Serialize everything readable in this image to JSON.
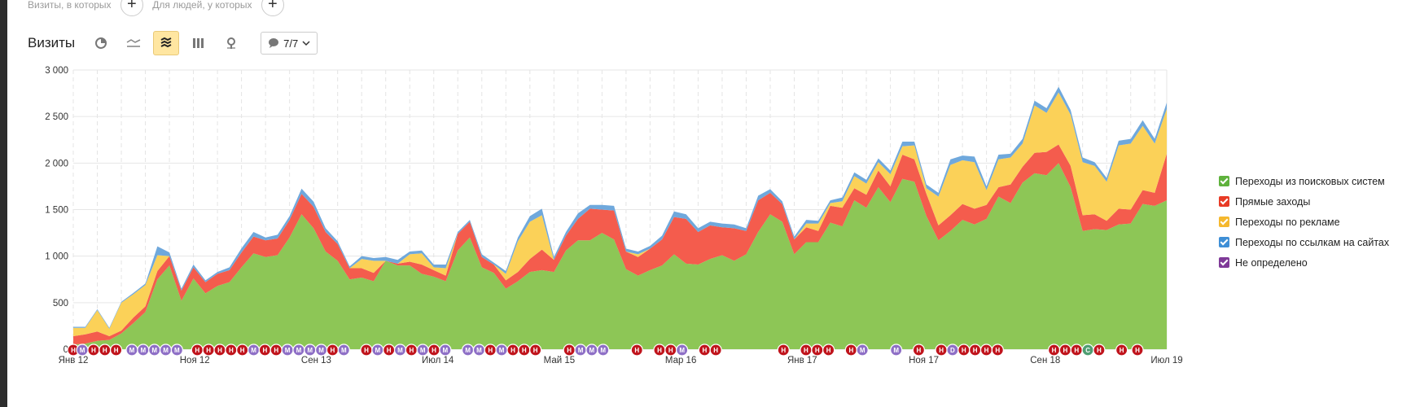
{
  "filters": {
    "visits_label": "Визиты, в которых",
    "people_label": "Для людей, у которых",
    "add_symbol": "+"
  },
  "toolbar": {
    "title": "Визиты",
    "annotations_count": "7/7"
  },
  "chart_data": {
    "type": "area",
    "stacked": true,
    "ylim": [
      0,
      3000
    ],
    "yticks": [
      0,
      500,
      1000,
      1500,
      2000,
      2500,
      3000
    ],
    "ytick_labels": [
      "0",
      "500",
      "1 000",
      "1 500",
      "2 000",
      "2 500",
      "3 000"
    ],
    "xtick_labels": [
      "Янв 12",
      "Ноя 12",
      "Сен 13",
      "Июл 14",
      "Май 15",
      "Мар 16",
      "Янв 17",
      "Ноя 17",
      "Сен 18",
      "Июл 19"
    ],
    "grid": true,
    "legend_position": "right",
    "series": [
      {
        "name": "Переходы из поисковых систем",
        "color": "#8dc656",
        "values": [
          50,
          60,
          90,
          100,
          170,
          280,
          400,
          750,
          900,
          520,
          760,
          600,
          680,
          720,
          880,
          1030,
          990,
          1010,
          1200,
          1450,
          1300,
          1050,
          950,
          750,
          770,
          730,
          950,
          900,
          900,
          810,
          780,
          730,
          1060,
          1200,
          880,
          820,
          650,
          730,
          830,
          850,
          830,
          1060,
          1170,
          1170,
          1250,
          1180,
          860,
          790,
          850,
          900,
          1020,
          920,
          910,
          970,
          1010,
          950,
          1020,
          1260,
          1450,
          1370,
          1020,
          1150,
          1150,
          1360,
          1320,
          1600,
          1520,
          1740,
          1580,
          1830,
          1800,
          1430,
          1170,
          1270,
          1390,
          1340,
          1400,
          1640,
          1570,
          1790,
          1890,
          1870,
          2000,
          1740,
          1270,
          1290,
          1280,
          1340,
          1350,
          1560,
          1540,
          1600
        ]
      },
      {
        "name": "Прямые заходы",
        "color": "#f45c4d",
        "values": [
          90,
          100,
          100,
          40,
          30,
          60,
          60,
          90,
          100,
          110,
          120,
          120,
          130,
          130,
          160,
          180,
          180,
          180,
          190,
          220,
          230,
          210,
          180,
          120,
          100,
          90,
          0,
          20,
          40,
          100,
          70,
          60,
          180,
          170,
          110,
          90,
          90,
          100,
          140,
          220,
          130,
          160,
          230,
          340,
          250,
          310,
          190,
          200,
          230,
          280,
          400,
          480,
          350,
          360,
          300,
          350,
          250,
          340,
          230,
          190,
          160,
          160,
          120,
          180,
          200,
          130,
          140,
          180,
          170,
          260,
          240,
          240,
          160,
          170,
          170,
          170,
          150,
          100,
          200,
          170,
          220,
          250,
          200,
          230,
          170,
          160,
          100,
          170,
          150,
          150,
          140,
          500
        ]
      },
      {
        "name": "Переходы по рекламе",
        "color": "#fbd158",
        "values": [
          90,
          70,
          230,
          80,
          300,
          250,
          230,
          170,
          0,
          0,
          0,
          0,
          0,
          0,
          0,
          0,
          0,
          0,
          0,
          0,
          0,
          0,
          0,
          0,
          100,
          130,
          0,
          0,
          80,
          120,
          30,
          80,
          0,
          0,
          0,
          0,
          70,
          330,
          400,
          370,
          0,
          0,
          0,
          0,
          0,
          0,
          0,
          30,
          0,
          0,
          0,
          0,
          0,
          0,
          0,
          0,
          0,
          0,
          0,
          0,
          0,
          40,
          80,
          30,
          70,
          130,
          120,
          90,
          130,
          90,
          150,
          60,
          310,
          540,
          470,
          500,
          160,
          300,
          290,
          250,
          510,
          420,
          560,
          550,
          570,
          520,
          420,
          680,
          710,
          690,
          530,
          480
        ]
      },
      {
        "name": "Переходы по ссылкам на сайтах",
        "color": "#6fa8dc",
        "values": [
          10,
          10,
          10,
          10,
          10,
          15,
          15,
          95,
          40,
          20,
          30,
          20,
          20,
          30,
          45,
          50,
          30,
          40,
          40,
          55,
          55,
          40,
          30,
          20,
          30,
          30,
          40,
          40,
          30,
          30,
          30,
          40,
          20,
          20,
          30,
          20,
          30,
          40,
          60,
          70,
          30,
          40,
          60,
          40,
          50,
          50,
          30,
          30,
          30,
          40,
          60,
          50,
          40,
          40,
          40,
          40,
          30,
          50,
          40,
          30,
          30,
          40,
          30,
          30,
          40,
          40,
          40,
          40,
          40,
          50,
          40,
          40,
          40,
          60,
          50,
          60,
          40,
          50,
          40,
          50,
          50,
          50,
          60,
          50,
          50,
          40,
          40,
          50,
          50,
          60,
          50,
          70
        ]
      },
      {
        "name": "Не определено",
        "color": "#7f3a98",
        "values": [
          0,
          0,
          0,
          0,
          0,
          0,
          0,
          0,
          0,
          0,
          0,
          0,
          0,
          0,
          0,
          0,
          0,
          0,
          0,
          0,
          0,
          0,
          0,
          0,
          0,
          0,
          0,
          0,
          0,
          0,
          0,
          0,
          0,
          0,
          0,
          0,
          0,
          0,
          0,
          0,
          0,
          0,
          0,
          0,
          0,
          0,
          0,
          0,
          0,
          0,
          0,
          0,
          0,
          0,
          0,
          0,
          0,
          0,
          0,
          0,
          0,
          0,
          0,
          0,
          0,
          0,
          0,
          0,
          0,
          0,
          0,
          0,
          0,
          0,
          0,
          0,
          0,
          0,
          0,
          0,
          0,
          0,
          0,
          0,
          0,
          0,
          0,
          0,
          0,
          0,
          0,
          0
        ]
      }
    ],
    "annotation_markers": [
      {
        "pos": 0.0,
        "t": "Н",
        "c": "#c0141c"
      },
      {
        "pos": 0.4,
        "t": "М",
        "c": "#8e6fc6"
      },
      {
        "pos": 0.9,
        "t": "Н",
        "c": "#c0141c"
      },
      {
        "pos": 1.4,
        "t": "Н",
        "c": "#c0141c"
      },
      {
        "pos": 1.9,
        "t": "Н",
        "c": "#c0141c"
      },
      {
        "pos": 2.6,
        "t": "М",
        "c": "#8e6fc6"
      },
      {
        "pos": 3.1,
        "t": "М",
        "c": "#8e6fc6"
      },
      {
        "pos": 3.6,
        "t": "М",
        "c": "#8e6fc6"
      },
      {
        "pos": 4.1,
        "t": "М",
        "c": "#8e6fc6"
      },
      {
        "pos": 4.6,
        "t": "М",
        "c": "#8e6fc6"
      },
      {
        "pos": 5.5,
        "t": "Н",
        "c": "#c0141c"
      },
      {
        "pos": 6.0,
        "t": "Н",
        "c": "#c0141c"
      },
      {
        "pos": 6.5,
        "t": "Н",
        "c": "#c0141c"
      },
      {
        "pos": 7.0,
        "t": "Н",
        "c": "#c0141c"
      },
      {
        "pos": 7.5,
        "t": "Н",
        "c": "#c0141c"
      },
      {
        "pos": 8.0,
        "t": "М",
        "c": "#8e6fc6"
      },
      {
        "pos": 8.5,
        "t": "Н",
        "c": "#c0141c"
      },
      {
        "pos": 9.0,
        "t": "Н",
        "c": "#c0141c"
      },
      {
        "pos": 9.5,
        "t": "М",
        "c": "#8e6fc6"
      },
      {
        "pos": 10.0,
        "t": "М",
        "c": "#8e6fc6"
      },
      {
        "pos": 10.5,
        "t": "М",
        "c": "#8e6fc6"
      },
      {
        "pos": 11.0,
        "t": "М",
        "c": "#8e6fc6"
      },
      {
        "pos": 11.5,
        "t": "Н",
        "c": "#c0141c"
      },
      {
        "pos": 12.0,
        "t": "М",
        "c": "#8e6fc6"
      },
      {
        "pos": 13.0,
        "t": "Н",
        "c": "#c0141c"
      },
      {
        "pos": 13.5,
        "t": "М",
        "c": "#8e6fc6"
      },
      {
        "pos": 14.0,
        "t": "Н",
        "c": "#c0141c"
      },
      {
        "pos": 14.5,
        "t": "М",
        "c": "#8e6fc6"
      },
      {
        "pos": 15.0,
        "t": "Н",
        "c": "#c0141c"
      },
      {
        "pos": 15.5,
        "t": "М",
        "c": "#8e6fc6"
      },
      {
        "pos": 16.0,
        "t": "Н",
        "c": "#c0141c"
      },
      {
        "pos": 16.5,
        "t": "М",
        "c": "#8e6fc6"
      },
      {
        "pos": 17.5,
        "t": "М",
        "c": "#8e6fc6"
      },
      {
        "pos": 18.0,
        "t": "М",
        "c": "#8e6fc6"
      },
      {
        "pos": 18.5,
        "t": "Н",
        "c": "#c0141c"
      },
      {
        "pos": 19.0,
        "t": "М",
        "c": "#8e6fc6"
      },
      {
        "pos": 19.5,
        "t": "Н",
        "c": "#c0141c"
      },
      {
        "pos": 20.0,
        "t": "Н",
        "c": "#c0141c"
      },
      {
        "pos": 20.5,
        "t": "Н",
        "c": "#c0141c"
      },
      {
        "pos": 22.0,
        "t": "Н",
        "c": "#c0141c"
      },
      {
        "pos": 22.5,
        "t": "М",
        "c": "#8e6fc6"
      },
      {
        "pos": 23.0,
        "t": "М",
        "c": "#8e6fc6"
      },
      {
        "pos": 23.5,
        "t": "М",
        "c": "#8e6fc6"
      },
      {
        "pos": 25.0,
        "t": "Н",
        "c": "#c0141c"
      },
      {
        "pos": 26.0,
        "t": "Н",
        "c": "#c0141c"
      },
      {
        "pos": 26.5,
        "t": "Н",
        "c": "#c0141c"
      },
      {
        "pos": 27.0,
        "t": "М",
        "c": "#8e6fc6"
      },
      {
        "pos": 28.0,
        "t": "Н",
        "c": "#c0141c"
      },
      {
        "pos": 28.5,
        "t": "Н",
        "c": "#c0141c"
      },
      {
        "pos": 31.5,
        "t": "Н",
        "c": "#c0141c"
      },
      {
        "pos": 32.5,
        "t": "Н",
        "c": "#c0141c"
      },
      {
        "pos": 33.0,
        "t": "Н",
        "c": "#c0141c"
      },
      {
        "pos": 33.5,
        "t": "Н",
        "c": "#c0141c"
      },
      {
        "pos": 34.5,
        "t": "Н",
        "c": "#c0141c"
      },
      {
        "pos": 35.0,
        "t": "М",
        "c": "#8e6fc6"
      },
      {
        "pos": 36.5,
        "t": "М",
        "c": "#8e6fc6"
      },
      {
        "pos": 37.5,
        "t": "Н",
        "c": "#c0141c"
      },
      {
        "pos": 38.5,
        "t": "Н",
        "c": "#c0141c"
      },
      {
        "pos": 39.0,
        "t": "D",
        "c": "#8e6fc6"
      },
      {
        "pos": 39.5,
        "t": "Н",
        "c": "#c0141c"
      },
      {
        "pos": 40.0,
        "t": "Н",
        "c": "#c0141c"
      },
      {
        "pos": 40.5,
        "t": "Н",
        "c": "#c0141c"
      },
      {
        "pos": 41.0,
        "t": "Н",
        "c": "#c0141c"
      },
      {
        "pos": 43.5,
        "t": "Н",
        "c": "#c0141c"
      },
      {
        "pos": 44.0,
        "t": "Н",
        "c": "#c0141c"
      },
      {
        "pos": 44.5,
        "t": "Н",
        "c": "#c0141c"
      },
      {
        "pos": 45.0,
        "t": "С",
        "c": "#4f9e72"
      },
      {
        "pos": 45.5,
        "t": "Н",
        "c": "#c0141c"
      },
      {
        "pos": 46.5,
        "t": "Н",
        "c": "#c0141c"
      },
      {
        "pos": 47.2,
        "t": "Н",
        "c": "#c0141c"
      }
    ]
  },
  "legend": [
    {
      "label": "Переходы из поисковых систем",
      "color": "#5fb23d"
    },
    {
      "label": "Прямые заходы",
      "color": "#e83b26"
    },
    {
      "label": "Переходы по рекламе",
      "color": "#f5b82e"
    },
    {
      "label": "Переходы по ссылкам на сайтах",
      "color": "#3f8fd6"
    },
    {
      "label": "Не определено",
      "color": "#7f3a98"
    }
  ]
}
